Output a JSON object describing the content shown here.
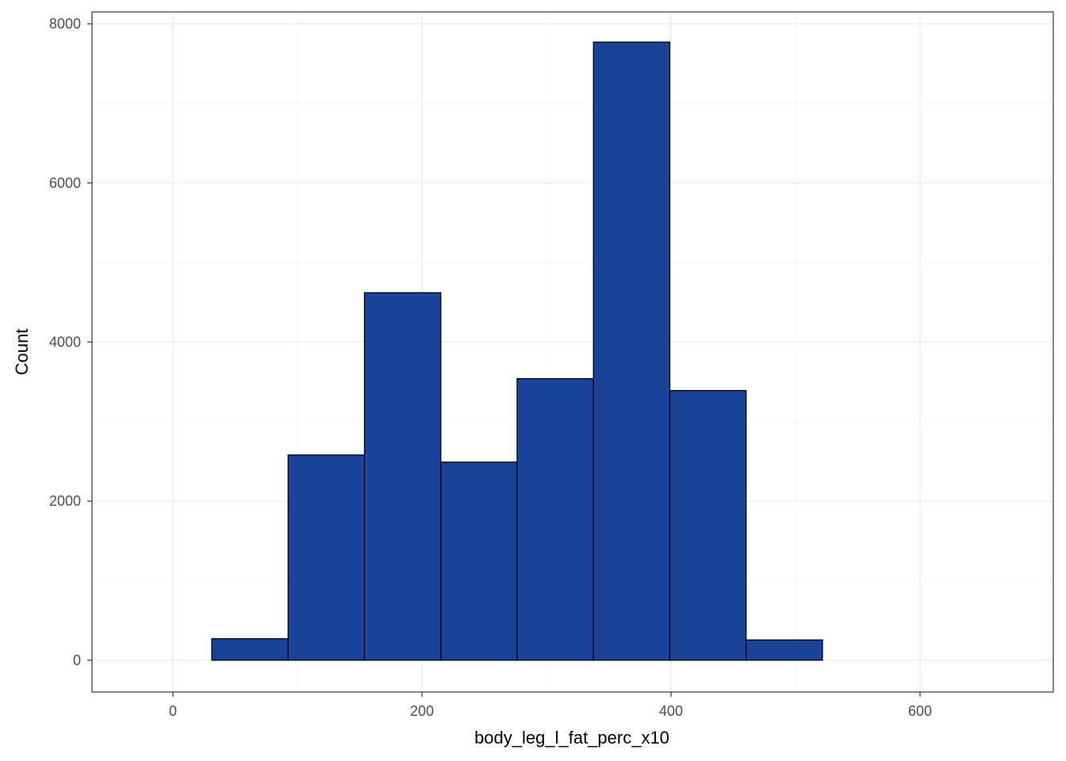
{
  "chart_data": {
    "type": "bar",
    "subtype": "histogram",
    "xlabel": "body_leg_l_fat_perc_x10",
    "ylabel": "Count",
    "xlim": [
      -65,
      707
    ],
    "ylim": [
      -400,
      8150
    ],
    "x_ticks": [
      0,
      200,
      400,
      600
    ],
    "x_tick_labels": [
      "0",
      "200",
      "400",
      "600"
    ],
    "y_ticks": [
      0,
      2000,
      4000,
      6000,
      8000
    ],
    "y_tick_labels": [
      "0",
      "2000",
      "4000",
      "6000",
      "8000"
    ],
    "bin_width": 61.3,
    "bins": [
      {
        "x0": -30.1,
        "x1": 31.2,
        "count": 0
      },
      {
        "x0": 31.2,
        "x1": 92.5,
        "count": 270
      },
      {
        "x0": 92.5,
        "x1": 153.8,
        "count": 2580
      },
      {
        "x0": 153.8,
        "x1": 215.1,
        "count": 4620
      },
      {
        "x0": 215.1,
        "x1": 276.4,
        "count": 2490
      },
      {
        "x0": 276.4,
        "x1": 337.7,
        "count": 3540
      },
      {
        "x0": 337.7,
        "x1": 399.0,
        "count": 7770
      },
      {
        "x0": 399.0,
        "x1": 460.3,
        "count": 3390
      },
      {
        "x0": 460.3,
        "x1": 521.6,
        "count": 255
      },
      {
        "x0": 521.6,
        "x1": 582.9,
        "count": 0
      },
      {
        "x0": 582.9,
        "x1": 644.2,
        "count": 0
      },
      {
        "x0": 644.2,
        "x1": 705.5,
        "count": 0
      }
    ],
    "grid": true,
    "legend": "none",
    "colors": {
      "bar_fill": "#1a4499",
      "bar_outline": "#000000",
      "panel_border": "#333333",
      "grid_major": "#ebebeb",
      "grid_minor": "#f5f5f5",
      "tick_text": "#4d4d4d"
    }
  }
}
